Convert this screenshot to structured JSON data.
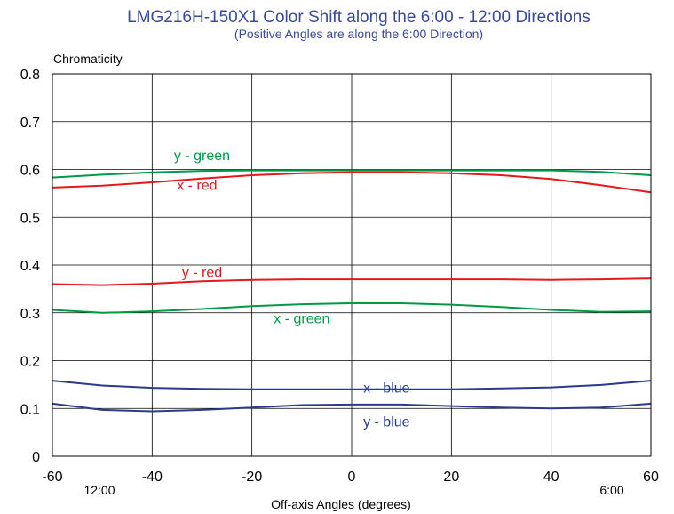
{
  "chart_data": {
    "type": "line",
    "title": "LMG216H-150X1 Color Shift along the 6:00 - 12:00 Directions",
    "subtitle": "(Positive Angles are along the 6:00 Direction)",
    "xlabel": "Off-axis Angles (degrees)",
    "ylabel": "Chromaticity",
    "xlim": [
      -60,
      60
    ],
    "ylim": [
      0,
      0.8
    ],
    "x_ticks": [
      "-60",
      "-40",
      "-20",
      "0",
      "20",
      "40",
      "60"
    ],
    "y_ticks": [
      "0",
      "0.1",
      "0.2",
      "0.3",
      "0.4",
      "0.5",
      "0.6",
      "0.7",
      "0.8"
    ],
    "direction_labels": {
      "left": "12:00",
      "right": "6:00"
    },
    "grid": true,
    "x": [
      -60,
      -50,
      -40,
      -30,
      -20,
      -10,
      0,
      10,
      20,
      30,
      40,
      50,
      60
    ],
    "series": [
      {
        "name": "y - green",
        "color": "#009a44",
        "label_at": [
          -30,
          0.62
        ],
        "values": [
          0.583,
          0.589,
          0.594,
          0.597,
          0.598,
          0.598,
          0.598,
          0.598,
          0.598,
          0.598,
          0.598,
          0.595,
          0.588
        ]
      },
      {
        "name": "x - red",
        "color": "#e3191b",
        "label_at": [
          -31,
          0.557
        ],
        "values": [
          0.562,
          0.566,
          0.573,
          0.581,
          0.588,
          0.592,
          0.594,
          0.594,
          0.592,
          0.588,
          0.58,
          0.567,
          0.552
        ]
      },
      {
        "name": "y - red",
        "color": "#e3191b",
        "label_at": [
          -30,
          0.375
        ],
        "values": [
          0.36,
          0.358,
          0.361,
          0.366,
          0.369,
          0.37,
          0.37,
          0.37,
          0.37,
          0.37,
          0.369,
          0.37,
          0.372
        ]
      },
      {
        "name": "x - green",
        "color": "#009a44",
        "label_at": [
          -10,
          0.278
        ],
        "values": [
          0.306,
          0.3,
          0.303,
          0.308,
          0.314,
          0.318,
          0.32,
          0.32,
          0.317,
          0.312,
          0.306,
          0.302,
          0.303
        ]
      },
      {
        "name": "x - blue",
        "color": "#2b3a8f",
        "label_at": [
          7,
          0.133
        ],
        "values": [
          0.158,
          0.148,
          0.143,
          0.141,
          0.14,
          0.14,
          0.14,
          0.14,
          0.14,
          0.142,
          0.144,
          0.149,
          0.158
        ]
      },
      {
        "name": "y - blue",
        "color": "#2b3a8f",
        "label_at": [
          7,
          0.062
        ],
        "values": [
          0.11,
          0.097,
          0.094,
          0.097,
          0.102,
          0.107,
          0.108,
          0.108,
          0.105,
          0.102,
          0.1,
          0.102,
          0.11
        ]
      }
    ]
  }
}
